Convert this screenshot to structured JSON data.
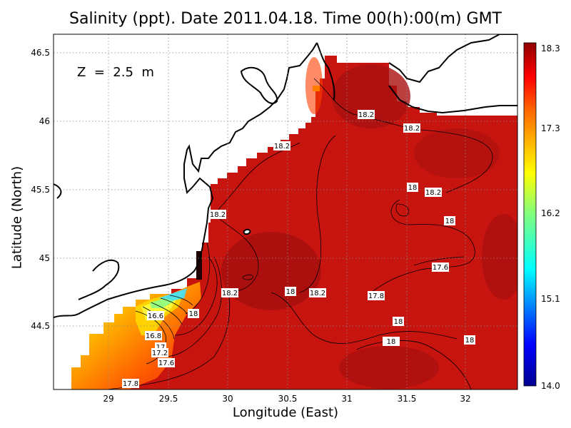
{
  "map": {
    "title": "Salinity (ppt). Date 2011.04.18. Time 00(h):00(m) GMT",
    "depth_label": "Z  =  2.5  m",
    "xlabel": "Longitude (East)",
    "ylabel": "Latitude (North)",
    "lon_ticks": [
      "29",
      "29.5",
      "30",
      "30.5",
      "31",
      "31.5",
      "32"
    ],
    "lat_ticks": [
      "44.5",
      "45",
      "45.5",
      "46",
      "46.5"
    ],
    "colorbar_ticks": [
      "14.0",
      "15.1",
      "16.2",
      "17.3",
      "18.3"
    ],
    "contour_labels": [
      "18.2",
      "18.2",
      "18.2",
      "18.2",
      "18.2",
      "18",
      "18",
      "18",
      "18.2",
      "18",
      "18",
      "18",
      "17.8",
      "17.6",
      "18",
      "18",
      "18.2",
      "16.6",
      "16.8",
      "17",
      "17.2",
      "17.6",
      "17.8"
    ],
    "colors": {
      "land": "#ffffff",
      "coast": "#000000",
      "sea_main": "#c8140f",
      "sea_dark": "#a50f0f"
    }
  }
}
